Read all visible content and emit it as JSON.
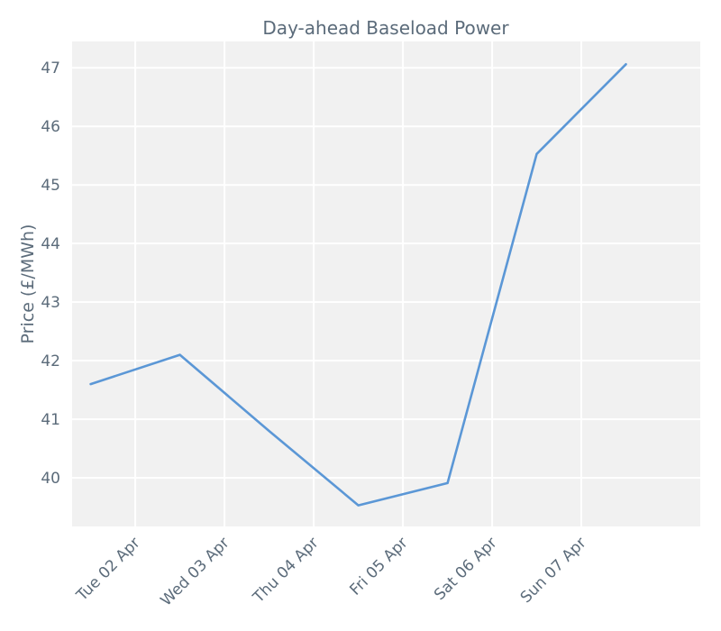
{
  "chart_data": {
    "type": "line",
    "title": "Day-ahead Baseload Power",
    "xlabel": "",
    "ylabel": "Price (£/MWh)",
    "x_tick_labels": [
      {
        "date": "2024-04-02T00:00",
        "label": "Tue 02 Apr"
      },
      {
        "date": "2024-04-03T00:00",
        "label": "Wed 03 Apr"
      },
      {
        "date": "2024-04-04T00:00",
        "label": "Thu 04 Apr"
      },
      {
        "date": "2024-04-05T00:00",
        "label": "Fri 05 Apr"
      },
      {
        "date": "2024-04-06T00:00",
        "label": "Sat 06 Apr"
      },
      {
        "date": "2024-04-07T00:00",
        "label": "Sun 07 Apr"
      }
    ],
    "xlim": [
      "2024-04-01T07:00",
      "2024-04-08T08:00"
    ],
    "ylim": [
      39.17,
      47.45
    ],
    "y_ticks": [
      40,
      41,
      42,
      43,
      44,
      45,
      46,
      47
    ],
    "grid": true,
    "series": [
      {
        "color": "#5b97d6",
        "x": [
          "2024-04-01T12:00",
          "2024-04-02T12:00",
          "2024-04-03T12:00",
          "2024-04-04T12:00",
          "2024-04-05T12:00",
          "2024-04-06T12:00",
          "2024-04-07T12:00"
        ],
        "values": [
          41.6,
          42.1,
          40.8,
          39.53,
          39.91,
          45.53,
          47.06
        ]
      }
    ]
  }
}
